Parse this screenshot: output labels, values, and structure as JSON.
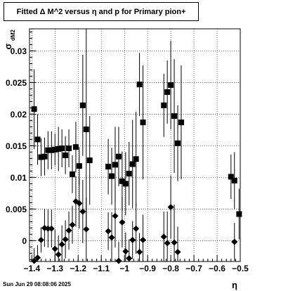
{
  "title": "Fitted Δ M^2 versus η and p for Primary pion+",
  "footer": "Sun Jun 29 08:08:06 2025",
  "chart_data": {
    "type": "scatter",
    "title": "Fitted Δ M^2 versus η and p for Primary pion+",
    "xlabel": "η",
    "ylabel": "σ",
    "ylabel_sub": "dM2",
    "xlim": [
      -1.41,
      -0.5
    ],
    "ylim": [
      -0.0033,
      0.0335
    ],
    "grid": true,
    "x_ticks": [
      -1.4,
      -1.3,
      -1.2,
      -1.1,
      -1.0,
      -0.9,
      -0.8,
      -0.7,
      -0.6,
      -0.5
    ],
    "x_tick_labels": [
      "−1.4",
      "−1.3",
      "−1.2",
      "−1.1",
      "−1",
      "−0.9",
      "−0.8",
      "−0.7",
      "−0.6",
      "−0.5"
    ],
    "y_ticks": [
      0,
      0.005,
      0.01,
      0.015,
      0.02,
      0.025,
      0.03
    ],
    "y_tick_labels": [
      "0",
      "0.005",
      "0.01",
      "0.015",
      "0.02",
      "0.025",
      "0.03"
    ],
    "series": [
      {
        "marker": "square",
        "points": [
          {
            "x": -1.39,
            "y": 0.0208,
            "err": 0.0063
          },
          {
            "x": -1.375,
            "y": 0.016,
            "err": 0.004
          },
          {
            "x": -1.36,
            "y": 0.0132,
            "err": 0.003
          },
          {
            "x": -1.345,
            "y": 0.0133,
            "err": 0.003
          },
          {
            "x": -1.33,
            "y": 0.0143,
            "err": 0.003
          },
          {
            "x": -1.315,
            "y": 0.0143,
            "err": 0.003
          },
          {
            "x": -1.3,
            "y": 0.0144,
            "err": 0.0025
          },
          {
            "x": -1.285,
            "y": 0.0145,
            "err": 0.0035
          },
          {
            "x": -1.27,
            "y": 0.0146,
            "err": 0.003
          },
          {
            "x": -1.255,
            "y": 0.0135,
            "err": 0.003
          },
          {
            "x": -1.24,
            "y": 0.0146,
            "err": 0.003
          },
          {
            "x": -1.225,
            "y": 0.0105,
            "err": 0.003
          },
          {
            "x": -1.21,
            "y": 0.0148,
            "err": 0.004
          },
          {
            "x": -1.195,
            "y": 0.0118,
            "err": 0.003
          },
          {
            "x": -1.18,
            "y": 0.0214,
            "err": 0.008
          },
          {
            "x": -1.165,
            "y": 0.0176,
            "err": 0.016
          },
          {
            "x": -1.15,
            "y": 0.0127,
            "err": 0.007
          },
          {
            "x": -1.07,
            "y": 0.0117,
            "err": 0.0044
          },
          {
            "x": -1.055,
            "y": 0.0102,
            "err": 0.0045
          },
          {
            "x": -1.04,
            "y": 0.012,
            "err": 0.006
          },
          {
            "x": -1.025,
            "y": 0.0133,
            "err": 0.0047
          },
          {
            "x": -1.01,
            "y": 0.0094,
            "err": 0.0047
          },
          {
            "x": -0.995,
            "y": 0.009,
            "err": 0.005
          },
          {
            "x": -0.98,
            "y": 0.0106,
            "err": 0.005
          },
          {
            "x": -0.965,
            "y": 0.0121,
            "err": 0.007
          },
          {
            "x": -0.95,
            "y": 0.0129,
            "err": 0.0075
          },
          {
            "x": -0.935,
            "y": 0.0247,
            "err": 0.005
          },
          {
            "x": -0.92,
            "y": 0.0187,
            "err": 0.009
          },
          {
            "x": -0.83,
            "y": 0.0214,
            "err": 0.005
          },
          {
            "x": -0.815,
            "y": 0.0235,
            "err": 0.005
          },
          {
            "x": -0.8,
            "y": 0.0246,
            "err": 0.007
          },
          {
            "x": -0.785,
            "y": 0.0197,
            "err": 0.009
          },
          {
            "x": -0.77,
            "y": 0.0154,
            "err": 0.006
          },
          {
            "x": -0.755,
            "y": 0.0187,
            "err": 0.009
          },
          {
            "x": -0.54,
            "y": 0.0101,
            "err": 0.0035
          },
          {
            "x": -0.525,
            "y": 0.0095,
            "err": 0.0045
          },
          {
            "x": -0.505,
            "y": 0.0042,
            "err": 0.004
          }
        ]
      },
      {
        "marker": "diamond",
        "points": [
          {
            "x": -1.39,
            "y": -0.0032,
            "err": 0.002
          },
          {
            "x": -1.375,
            "y": -0.0027,
            "err": 0.002
          },
          {
            "x": -1.36,
            "y": 0.0001,
            "err": 0.002
          },
          {
            "x": -1.345,
            "y": 0.002,
            "err": 0.003
          },
          {
            "x": -1.33,
            "y": 0.0019,
            "err": 0.003
          },
          {
            "x": -1.315,
            "y": 0.0019,
            "err": 0.003
          },
          {
            "x": -1.3,
            "y": -0.0013,
            "err": 0.003
          },
          {
            "x": -1.285,
            "y": -0.0022,
            "err": 0.003
          },
          {
            "x": -1.27,
            "y": -0.0006,
            "err": 0.003
          },
          {
            "x": -1.255,
            "y": 0.0002,
            "err": 0.003
          },
          {
            "x": -1.24,
            "y": 0.0016,
            "err": 0.003
          },
          {
            "x": -1.225,
            "y": 0.0025,
            "err": 0.003
          },
          {
            "x": -1.21,
            "y": 0.0062,
            "err": 0.004
          },
          {
            "x": -1.195,
            "y": 0.0059,
            "err": 0.004
          },
          {
            "x": -1.18,
            "y": 0.0046,
            "err": 0.005
          },
          {
            "x": -1.165,
            "y": 0.0018,
            "err": 0.005
          },
          {
            "x": -1.07,
            "y": 0.0015,
            "err": 0.003
          },
          {
            "x": -1.055,
            "y": 0.0005,
            "err": 0.004
          },
          {
            "x": -1.04,
            "y": 0.0039,
            "err": 0.005
          },
          {
            "x": -1.025,
            "y": -0.0032,
            "err": 0.003
          },
          {
            "x": -1.01,
            "y": 0.0029,
            "err": 0.004
          },
          {
            "x": -0.995,
            "y": -0.0017,
            "err": 0.003
          },
          {
            "x": -0.98,
            "y": -0.0028,
            "err": 0.003
          },
          {
            "x": -0.965,
            "y": 0.0001,
            "err": 0.003
          },
          {
            "x": -0.95,
            "y": 0.0019,
            "err": 0.004
          },
          {
            "x": -0.935,
            "y": -0.0018,
            "err": 0.003
          },
          {
            "x": -0.92,
            "y": 0.0001,
            "err": 0.004
          },
          {
            "x": -0.83,
            "y": 0.0006,
            "err": 0.004
          },
          {
            "x": -0.815,
            "y": -0.0004,
            "err": 0.005
          },
          {
            "x": -0.8,
            "y": 0.0053,
            "err": 0.005
          },
          {
            "x": -0.785,
            "y": -0.0003,
            "err": 0.006
          },
          {
            "x": -0.77,
            "y": -0.0018,
            "err": 0.004
          },
          {
            "x": -0.525,
            "y": -0.0002,
            "err": 0.003
          }
        ]
      }
    ]
  }
}
